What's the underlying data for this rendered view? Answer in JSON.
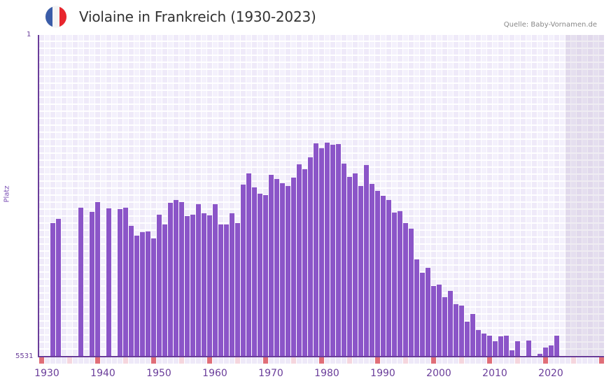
{
  "header": {
    "title": "Violaine in Frankreich (1930-2023)",
    "source": "Quelle: Baby-Vornamen.de",
    "flag_colors": [
      "#3a5ca8",
      "#f4f4f4",
      "#e8262e"
    ]
  },
  "colors": {
    "bar": "#8b55c8",
    "axis": "#6a3d9a",
    "grid_a": "#efeaf9",
    "grid_b": "#f4f1fc",
    "decade_mark": "#e06e78",
    "half_mark": "#f5d6de",
    "minor_mark": "#eee9f8"
  },
  "chart_data": {
    "type": "bar",
    "title": "Violaine in Frankreich (1930-2023)",
    "xlabel": "",
    "ylabel": "Platz",
    "y_inverted": true,
    "ylim": [
      1,
      5531
    ],
    "y_ticks": [
      "1",
      "5531"
    ],
    "x_ticks": [
      "1930",
      "1940",
      "1950",
      "1960",
      "1970",
      "1980",
      "1990",
      "2000",
      "2010",
      "2020"
    ],
    "x_range": [
      1929,
      2029
    ],
    "shaded_from_year": 2023,
    "grid": true,
    "legend": null,
    "data": [
      {
        "year": 1931,
        "rank": 3240
      },
      {
        "year": 1932,
        "rank": 3168
      },
      {
        "year": 1936,
        "rank": 2976
      },
      {
        "year": 1938,
        "rank": 3048
      },
      {
        "year": 1939,
        "rank": 2880
      },
      {
        "year": 1941,
        "rank": 2988
      },
      {
        "year": 1943,
        "rank": 3000
      },
      {
        "year": 1944,
        "rank": 2976
      },
      {
        "year": 1945,
        "rank": 3277
      },
      {
        "year": 1946,
        "rank": 3457
      },
      {
        "year": 1947,
        "rank": 3385
      },
      {
        "year": 1948,
        "rank": 3373
      },
      {
        "year": 1949,
        "rank": 3505
      },
      {
        "year": 1950,
        "rank": 3096
      },
      {
        "year": 1951,
        "rank": 3264
      },
      {
        "year": 1952,
        "rank": 2892
      },
      {
        "year": 1953,
        "rank": 2832
      },
      {
        "year": 1954,
        "rank": 2868
      },
      {
        "year": 1955,
        "rank": 3120
      },
      {
        "year": 1956,
        "rank": 3096
      },
      {
        "year": 1957,
        "rank": 2916
      },
      {
        "year": 1958,
        "rank": 3072
      },
      {
        "year": 1959,
        "rank": 3108
      },
      {
        "year": 1960,
        "rank": 2916
      },
      {
        "year": 1961,
        "rank": 3253
      },
      {
        "year": 1962,
        "rank": 3253
      },
      {
        "year": 1963,
        "rank": 3072
      },
      {
        "year": 1964,
        "rank": 3240
      },
      {
        "year": 1965,
        "rank": 2579
      },
      {
        "year": 1966,
        "rank": 2387
      },
      {
        "year": 1967,
        "rank": 2627
      },
      {
        "year": 1968,
        "rank": 2735
      },
      {
        "year": 1969,
        "rank": 2759
      },
      {
        "year": 1970,
        "rank": 2411
      },
      {
        "year": 1971,
        "rank": 2483
      },
      {
        "year": 1972,
        "rank": 2555
      },
      {
        "year": 1973,
        "rank": 2603
      },
      {
        "year": 1974,
        "rank": 2459
      },
      {
        "year": 1975,
        "rank": 2219
      },
      {
        "year": 1976,
        "rank": 2303
      },
      {
        "year": 1977,
        "rank": 2099
      },
      {
        "year": 1978,
        "rank": 1859
      },
      {
        "year": 1979,
        "rank": 1943
      },
      {
        "year": 1980,
        "rank": 1847
      },
      {
        "year": 1981,
        "rank": 1883
      },
      {
        "year": 1982,
        "rank": 1871
      },
      {
        "year": 1983,
        "rank": 2207
      },
      {
        "year": 1984,
        "rank": 2447
      },
      {
        "year": 1985,
        "rank": 2387
      },
      {
        "year": 1986,
        "rank": 2603
      },
      {
        "year": 1987,
        "rank": 2231
      },
      {
        "year": 1988,
        "rank": 2567
      },
      {
        "year": 1989,
        "rank": 2687
      },
      {
        "year": 1990,
        "rank": 2771
      },
      {
        "year": 1991,
        "rank": 2832
      },
      {
        "year": 1992,
        "rank": 3060
      },
      {
        "year": 1993,
        "rank": 3036
      },
      {
        "year": 1994,
        "rank": 3240
      },
      {
        "year": 1995,
        "rank": 3325
      },
      {
        "year": 1996,
        "rank": 3854
      },
      {
        "year": 1997,
        "rank": 4094
      },
      {
        "year": 1998,
        "rank": 4010
      },
      {
        "year": 1999,
        "rank": 4311
      },
      {
        "year": 2000,
        "rank": 4287
      },
      {
        "year": 2001,
        "rank": 4503
      },
      {
        "year": 2002,
        "rank": 4395
      },
      {
        "year": 2003,
        "rank": 4635
      },
      {
        "year": 2004,
        "rank": 4659
      },
      {
        "year": 2005,
        "rank": 4935
      },
      {
        "year": 2006,
        "rank": 4803
      },
      {
        "year": 2007,
        "rank": 5079
      },
      {
        "year": 2008,
        "rank": 5139
      },
      {
        "year": 2009,
        "rank": 5175
      },
      {
        "year": 2010,
        "rank": 5271
      },
      {
        "year": 2011,
        "rank": 5187
      },
      {
        "year": 2012,
        "rank": 5175
      },
      {
        "year": 2013,
        "rank": 5427
      },
      {
        "year": 2014,
        "rank": 5271
      },
      {
        "year": 2016,
        "rank": 5259
      },
      {
        "year": 2018,
        "rank": 5483
      },
      {
        "year": 2019,
        "rank": 5375
      },
      {
        "year": 2020,
        "rank": 5339
      },
      {
        "year": 2021,
        "rank": 5175
      }
    ]
  }
}
